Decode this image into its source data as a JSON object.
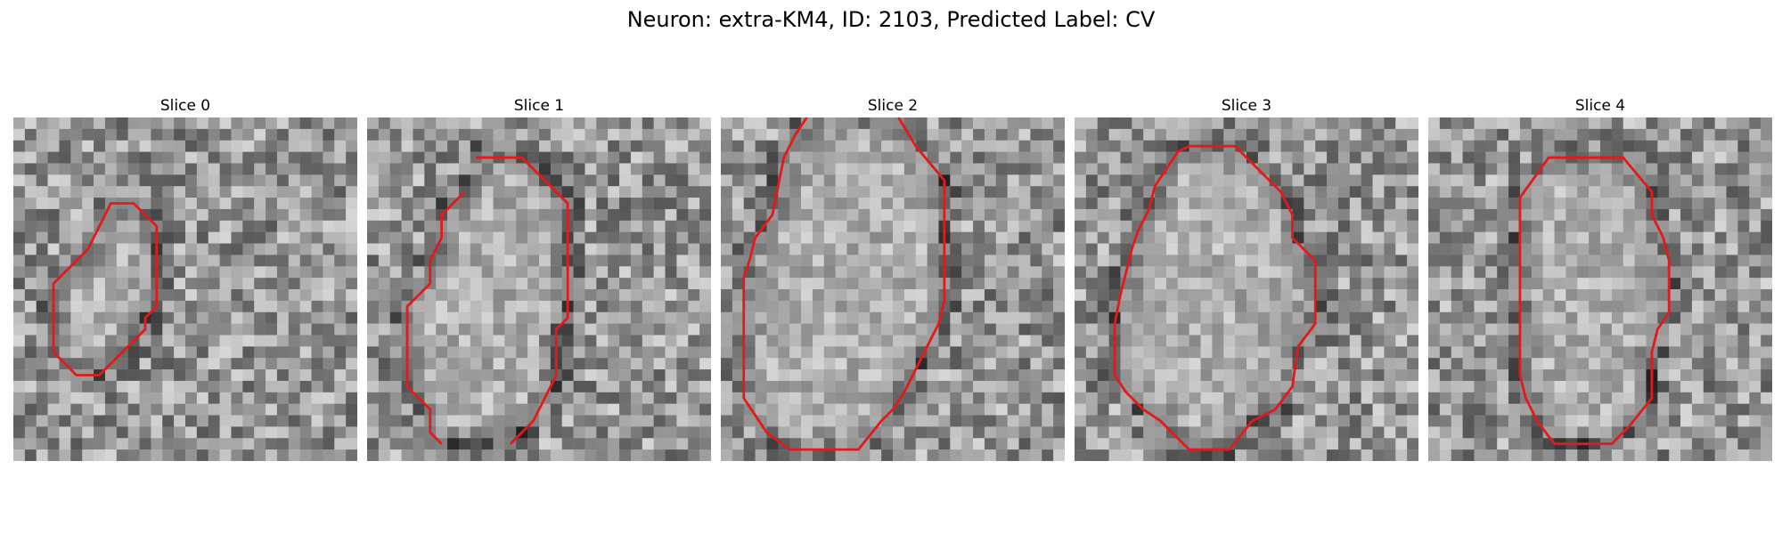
{
  "figure": {
    "title": "Neuron: extra-KM4, ID: 2103, Predicted Label: CV",
    "contour_color": "#e31a1c",
    "grid_size": 30
  },
  "panels": [
    {
      "label": "Slice 0",
      "contour": [
        [
          8.5,
          7.5
        ],
        [
          10.5,
          7.5
        ],
        [
          12.5,
          9.5
        ],
        [
          12.5,
          16.5
        ],
        [
          11.5,
          17.5
        ],
        [
          11.5,
          18.5
        ],
        [
          7.5,
          22.5
        ],
        [
          5.5,
          22.5
        ],
        [
          3.5,
          20.5
        ],
        [
          3.5,
          14.5
        ],
        [
          6.5,
          11.5
        ]
      ],
      "closed": true
    },
    {
      "label": "Slice 1",
      "contour": [
        [
          9.5,
          3.5
        ],
        [
          13.5,
          3.5
        ],
        [
          15.5,
          5.5
        ],
        [
          17.5,
          7.5
        ],
        [
          17.5,
          17.5
        ],
        [
          16.5,
          18.5
        ],
        [
          16.5,
          22.5
        ],
        [
          14.5,
          26.5
        ],
        [
          12.5,
          28.5
        ]
      ],
      "contour2": [
        [
          6.5,
          28.5
        ],
        [
          5.5,
          27.5
        ],
        [
          5.5,
          25.5
        ],
        [
          3.5,
          23.5
        ],
        [
          3.5,
          16.5
        ],
        [
          5.5,
          14.5
        ],
        [
          5.5,
          12.5
        ],
        [
          6.5,
          10.5
        ],
        [
          6.5,
          8.5
        ],
        [
          8.5,
          6.5
        ]
      ],
      "closed": false
    },
    {
      "label": "Slice 2",
      "contour": [
        [
          7.5,
          0.0
        ],
        [
          6.5,
          1.5
        ],
        [
          5.5,
          3.5
        ],
        [
          5.0,
          6.0
        ],
        [
          4.5,
          8.5
        ],
        [
          3.0,
          10.5
        ],
        [
          2.5,
          12.5
        ],
        [
          2.0,
          14.0
        ],
        [
          2.0,
          24.5
        ],
        [
          4.0,
          27.5
        ],
        [
          6.0,
          29.0
        ],
        [
          12.0,
          29.0
        ],
        [
          14.0,
          26.5
        ],
        [
          15.0,
          25.5
        ],
        [
          16.0,
          24.0
        ],
        [
          17.0,
          22.0
        ],
        [
          18.0,
          20.0
        ],
        [
          19.0,
          18.0
        ],
        [
          19.5,
          16.0
        ],
        [
          19.5,
          5.5
        ],
        [
          17.0,
          2.5
        ],
        [
          15.5,
          0.0
        ]
      ],
      "closed": false
    },
    {
      "label": "Slice 3",
      "contour": [
        [
          9.0,
          3.0
        ],
        [
          10.0,
          2.5
        ],
        [
          14.0,
          2.5
        ],
        [
          16.0,
          4.5
        ],
        [
          18.0,
          6.5
        ],
        [
          19.0,
          8.5
        ],
        [
          19.0,
          10.5
        ],
        [
          21.0,
          12.5
        ],
        [
          21.0,
          18.0
        ],
        [
          19.5,
          20.0
        ],
        [
          19.0,
          23.5
        ],
        [
          17.5,
          25.5
        ],
        [
          15.5,
          26.5
        ],
        [
          13.5,
          29.0
        ],
        [
          10.0,
          29.0
        ],
        [
          7.5,
          26.5
        ],
        [
          6.0,
          25.5
        ],
        [
          4.5,
          24.0
        ],
        [
          3.5,
          22.5
        ],
        [
          3.5,
          18.0
        ],
        [
          4.0,
          15.5
        ],
        [
          4.5,
          13.5
        ],
        [
          5.0,
          11.5
        ],
        [
          5.5,
          10.0
        ],
        [
          6.5,
          8.0
        ],
        [
          7.0,
          6.0
        ]
      ],
      "closed": true
    },
    {
      "label": "Slice 4",
      "contour": [
        [
          10.5,
          3.5
        ],
        [
          17.0,
          3.5
        ],
        [
          19.5,
          6.5
        ],
        [
          19.5,
          8.5
        ],
        [
          20.5,
          10.5
        ],
        [
          21.0,
          12.5
        ],
        [
          21.0,
          17.0
        ],
        [
          20.0,
          18.5
        ],
        [
          19.5,
          20.5
        ],
        [
          19.5,
          24.5
        ],
        [
          17.5,
          27.0
        ],
        [
          16.0,
          28.5
        ],
        [
          11.0,
          28.5
        ],
        [
          9.5,
          26.5
        ],
        [
          8.5,
          24.5
        ],
        [
          8.0,
          22.5
        ],
        [
          8.0,
          7.0
        ]
      ],
      "closed": true
    }
  ]
}
